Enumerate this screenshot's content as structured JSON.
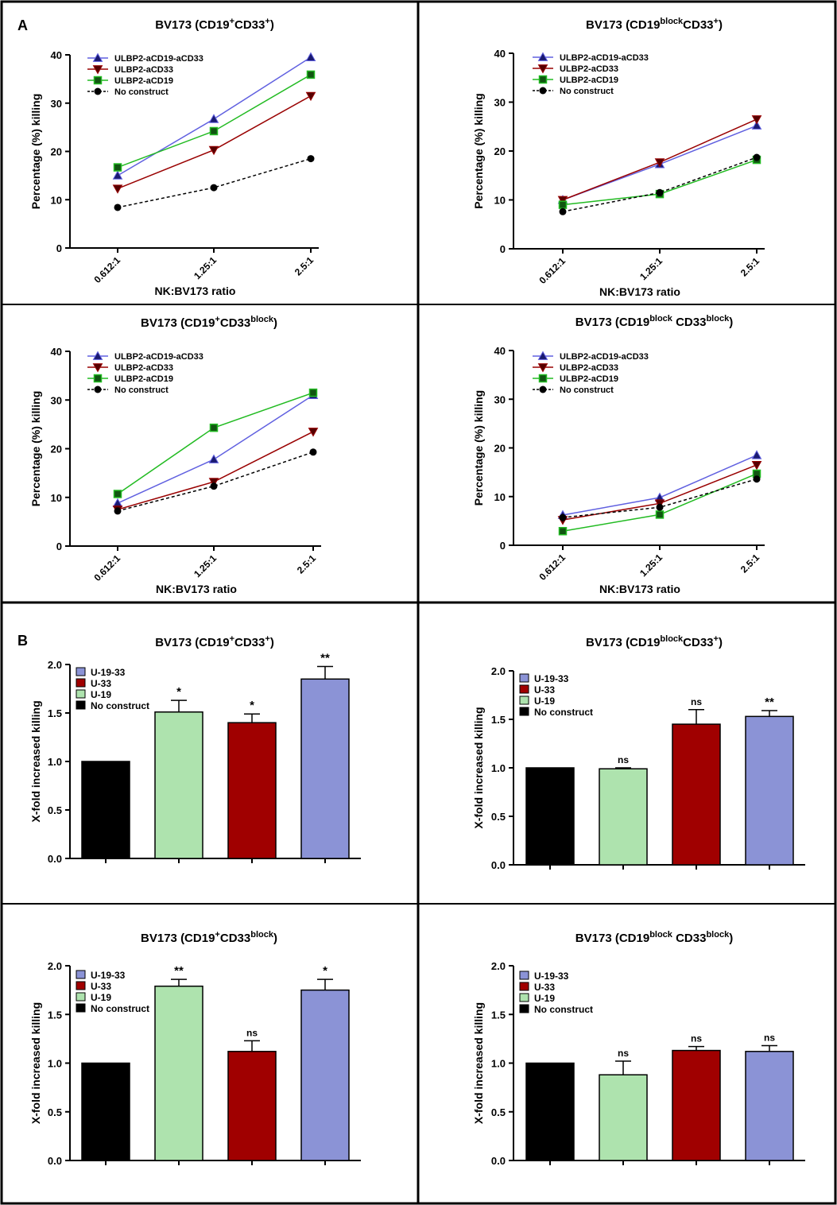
{
  "panel_letters": {
    "a": "A",
    "b": "B"
  },
  "colors": {
    "blue_line": "#6060e0",
    "red_line": "#990000",
    "green_line": "#22bb22",
    "black": "#000000",
    "bar_blue": "#8b93d6",
    "bar_red": "#a00000",
    "bar_green": "#aee3ae",
    "bar_black": "#000000"
  },
  "chart_data": [
    {
      "type": "line",
      "panel": "A",
      "title": "BV173 (CD19⁺CD33⁺)",
      "xlabel": "NK:BV173 ratio",
      "ylabel": "Percentage (%) killing",
      "categories": [
        "0.612:1",
        "1.25:1",
        "2.5:1"
      ],
      "ylim": [
        0,
        40
      ],
      "yticks": [
        0,
        10,
        20,
        30,
        40
      ],
      "legend_position": "top-left",
      "series": [
        {
          "name": "ULBP2-aCD19-aCD33",
          "marker": "triangle-up",
          "color": "#6060e0",
          "values": [
            15,
            26.7,
            39.5
          ]
        },
        {
          "name": "ULBP2-aCD33",
          "marker": "triangle-down",
          "color": "#990000",
          "values": [
            12.3,
            20.3,
            31.5
          ]
        },
        {
          "name": "ULBP2-aCD19",
          "marker": "square",
          "color": "#22bb22",
          "values": [
            16.7,
            24.2,
            35.9
          ]
        },
        {
          "name": "No construct",
          "marker": "circle",
          "color": "#000000",
          "dashed": true,
          "values": [
            8.4,
            12.5,
            18.5
          ]
        }
      ]
    },
    {
      "type": "line",
      "panel": "A",
      "title": "BV173 (CD19ᵇˡᵒᶜᵏCD33⁺)",
      "xlabel": "NK:BV173 ratio",
      "ylabel": "Percentage (%) killing",
      "categories": [
        "0.612:1",
        "1.25:1",
        "2.5:1"
      ],
      "ylim": [
        0,
        40
      ],
      "yticks": [
        0,
        10,
        20,
        30,
        40
      ],
      "legend_position": "top-left",
      "series": [
        {
          "name": "ULBP2-aCD19-aCD33",
          "marker": "triangle-up",
          "color": "#6060e0",
          "values": [
            10,
            17.3,
            25.2
          ]
        },
        {
          "name": "ULBP2-aCD33",
          "marker": "triangle-down",
          "color": "#990000",
          "values": [
            10,
            17.7,
            26.5
          ]
        },
        {
          "name": "ULBP2-aCD19",
          "marker": "square",
          "color": "#22bb22",
          "values": [
            9,
            11.2,
            18.2
          ]
        },
        {
          "name": "No construct",
          "marker": "circle",
          "color": "#000000",
          "dashed": true,
          "values": [
            7.6,
            11.5,
            18.7
          ]
        }
      ]
    },
    {
      "type": "line",
      "panel": "A",
      "title": "BV173 (CD19⁺CD33ᵇˡᵒᶜᵏ)",
      "xlabel": "NK:BV173 ratio",
      "ylabel": "Percentage (%) killing",
      "categories": [
        "0.612:1",
        "1.25:1",
        "2.5:1"
      ],
      "ylim": [
        0,
        40
      ],
      "yticks": [
        0,
        10,
        20,
        30,
        40
      ],
      "legend_position": "top-left",
      "series": [
        {
          "name": "ULBP2-aCD19-aCD33",
          "marker": "triangle-up",
          "color": "#6060e0",
          "values": [
            8.8,
            17.8,
            31
          ]
        },
        {
          "name": "ULBP2-aCD33",
          "marker": "triangle-down",
          "color": "#990000",
          "values": [
            7.5,
            13.2,
            23.5
          ]
        },
        {
          "name": "ULBP2-aCD19",
          "marker": "square",
          "color": "#22bb22",
          "values": [
            10.7,
            24.3,
            31.5
          ]
        },
        {
          "name": "No construct",
          "marker": "circle",
          "color": "#000000",
          "dashed": true,
          "values": [
            7.2,
            12.3,
            19.3
          ]
        }
      ]
    },
    {
      "type": "line",
      "panel": "A",
      "title": "BV173 (CD19ᵇˡᵒᶜᵏ CD33ᵇˡᵒᶜᵏ)",
      "xlabel": "NK:BV173 ratio",
      "ylabel": "Percentage (%) killing",
      "categories": [
        "0.612:1",
        "1.25:1",
        "2.5:1"
      ],
      "ylim": [
        0,
        40
      ],
      "yticks": [
        0,
        10,
        20,
        30,
        40
      ],
      "legend_position": "top-left",
      "series": [
        {
          "name": "ULBP2-aCD19-aCD33",
          "marker": "triangle-up",
          "color": "#6060e0",
          "values": [
            6.2,
            9.8,
            18.5
          ]
        },
        {
          "name": "ULBP2-aCD33",
          "marker": "triangle-down",
          "color": "#990000",
          "values": [
            5.2,
            8.6,
            16.5
          ]
        },
        {
          "name": "ULBP2-aCD19",
          "marker": "square",
          "color": "#22bb22",
          "values": [
            2.9,
            6.3,
            14.7
          ]
        },
        {
          "name": "No construct",
          "marker": "circle",
          "color": "#000000",
          "dashed": true,
          "values": [
            5.7,
            7.8,
            13.6
          ]
        }
      ]
    },
    {
      "type": "bar",
      "panel": "B",
      "title": "BV173 (CD19⁺CD33⁺)",
      "ylabel": "X-fold increased killing",
      "ylim": [
        0,
        2
      ],
      "yticks": [
        "0.0",
        "0.5",
        "1.0",
        "1.5",
        "2.0"
      ],
      "legend_position": "top-left",
      "legend": [
        {
          "name": "U-19-33",
          "color": "#8b93d6"
        },
        {
          "name": "U-33",
          "color": "#a00000"
        },
        {
          "name": "U-19",
          "color": "#aee3ae"
        },
        {
          "name": "No construct",
          "color": "#000000"
        }
      ],
      "bars": [
        {
          "name": "No construct",
          "color": "#000000",
          "value": 1.0,
          "error": 0,
          "sig": ""
        },
        {
          "name": "U-19",
          "color": "#aee3ae",
          "value": 1.51,
          "error": 0.12,
          "sig": "*"
        },
        {
          "name": "U-33",
          "color": "#a00000",
          "value": 1.4,
          "error": 0.09,
          "sig": "*"
        },
        {
          "name": "U-19-33",
          "color": "#8b93d6",
          "value": 1.85,
          "error": 0.13,
          "sig": "**"
        }
      ]
    },
    {
      "type": "bar",
      "panel": "B",
      "title": "BV173 (CD19ᵇˡᵒᶜᵏCD33⁺)",
      "ylabel": "X-fold increased killing",
      "ylim": [
        0,
        2
      ],
      "yticks": [
        "0.0",
        "0.5",
        "1.0",
        "1.5",
        "2.0"
      ],
      "legend_position": "top-left",
      "legend": [
        {
          "name": "U-19-33",
          "color": "#8b93d6"
        },
        {
          "name": "U-33",
          "color": "#a00000"
        },
        {
          "name": "U-19",
          "color": "#aee3ae"
        },
        {
          "name": "No construct",
          "color": "#000000"
        }
      ],
      "bars": [
        {
          "name": "No construct",
          "color": "#000000",
          "value": 1.0,
          "error": 0,
          "sig": ""
        },
        {
          "name": "U-19",
          "color": "#aee3ae",
          "value": 0.99,
          "error": 0.01,
          "sig": "ns"
        },
        {
          "name": "U-33",
          "color": "#a00000",
          "value": 1.45,
          "error": 0.15,
          "sig": "ns"
        },
        {
          "name": "U-19-33",
          "color": "#8b93d6",
          "value": 1.53,
          "error": 0.06,
          "sig": "**"
        }
      ]
    },
    {
      "type": "bar",
      "panel": "B",
      "title": "BV173 (CD19⁺CD33ᵇˡᵒᶜᵏ)",
      "ylabel": "X-fold increased killing",
      "ylim": [
        0,
        2
      ],
      "yticks": [
        "0.0",
        "0.5",
        "1.0",
        "1.5",
        "2.0"
      ],
      "legend_position": "top-left",
      "legend": [
        {
          "name": "U-19-33",
          "color": "#8b93d6"
        },
        {
          "name": "U-33",
          "color": "#a00000"
        },
        {
          "name": "U-19",
          "color": "#aee3ae"
        },
        {
          "name": "No construct",
          "color": "#000000"
        }
      ],
      "bars": [
        {
          "name": "No construct",
          "color": "#000000",
          "value": 1.0,
          "error": 0,
          "sig": ""
        },
        {
          "name": "U-19",
          "color": "#aee3ae",
          "value": 1.79,
          "error": 0.07,
          "sig": "**"
        },
        {
          "name": "U-33",
          "color": "#a00000",
          "value": 1.12,
          "error": 0.11,
          "sig": "ns"
        },
        {
          "name": "U-19-33",
          "color": "#8b93d6",
          "value": 1.75,
          "error": 0.11,
          "sig": "*"
        }
      ]
    },
    {
      "type": "bar",
      "panel": "B",
      "title": "BV173 (CD19ᵇˡᵒᶜᵏ CD33ᵇˡᵒᶜᵏ)",
      "ylabel": "X-fold increased killing",
      "ylim": [
        0,
        2
      ],
      "yticks": [
        "0.0",
        "0.5",
        "1.0",
        "1.5",
        "2.0"
      ],
      "legend_position": "top-left",
      "legend": [
        {
          "name": "U-19-33",
          "color": "#8b93d6"
        },
        {
          "name": "U-33",
          "color": "#a00000"
        },
        {
          "name": "U-19",
          "color": "#aee3ae"
        },
        {
          "name": "No construct",
          "color": "#000000"
        }
      ],
      "bars": [
        {
          "name": "No construct",
          "color": "#000000",
          "value": 1.0,
          "error": 0,
          "sig": ""
        },
        {
          "name": "U-19",
          "color": "#aee3ae",
          "value": 0.88,
          "error": 0.14,
          "sig": "ns"
        },
        {
          "name": "U-33",
          "color": "#a00000",
          "value": 1.13,
          "error": 0.04,
          "sig": "ns"
        },
        {
          "name": "U-19-33",
          "color": "#8b93d6",
          "value": 1.12,
          "error": 0.06,
          "sig": "ns"
        }
      ]
    }
  ]
}
